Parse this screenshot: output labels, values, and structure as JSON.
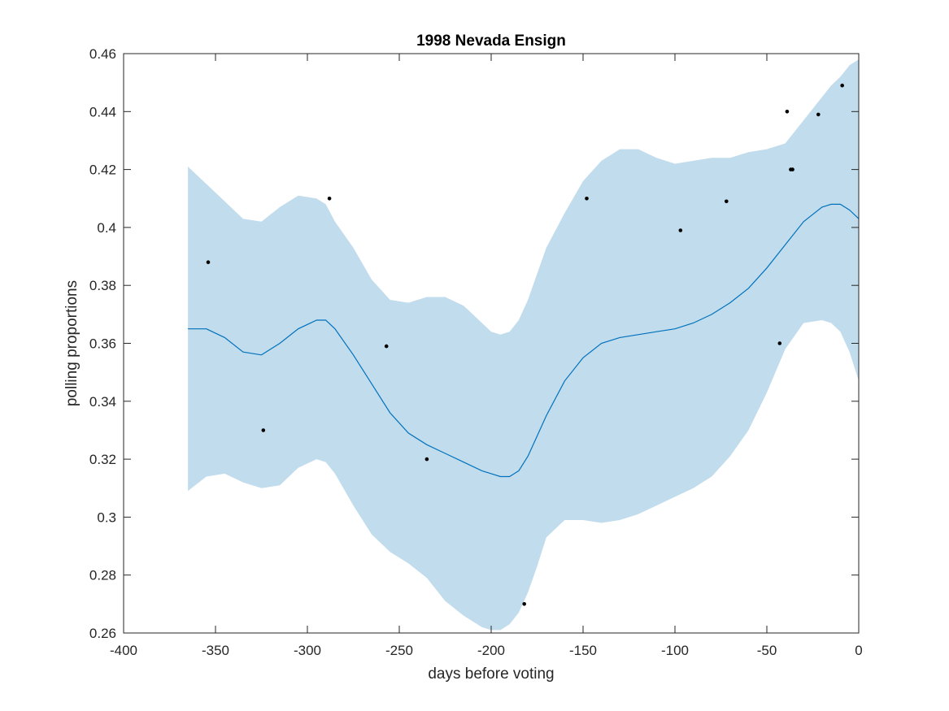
{
  "chart_data": {
    "type": "line",
    "title": "1998 Nevada Ensign",
    "xlabel": "days before voting",
    "ylabel": "polling proportions",
    "xlim": [
      -400,
      0
    ],
    "ylim": [
      0.26,
      0.46
    ],
    "xticks": [
      -400,
      -350,
      -300,
      -250,
      -200,
      -150,
      -100,
      -50,
      0
    ],
    "xtick_labels": [
      "-400",
      "-350",
      "-300",
      "-250",
      "-200",
      "-150",
      "-100",
      "-50",
      "0"
    ],
    "yticks": [
      0.26,
      0.28,
      0.3,
      0.32,
      0.34,
      0.36,
      0.38,
      0.4,
      0.42,
      0.44,
      0.46
    ],
    "ytick_labels": [
      "0.26",
      "0.28",
      "0.3",
      "0.32",
      "0.34",
      "0.36",
      "0.38",
      "0.4",
      "0.42",
      "0.44",
      "0.46"
    ],
    "grid": false,
    "colors": {
      "mean": "#0072bd",
      "band": "#c1dcec",
      "points": "#000000",
      "axes": "#262626"
    },
    "series": [
      {
        "kind": "mean",
        "x": [
          -365,
          -355,
          -345,
          -335,
          -325,
          -315,
          -305,
          -295,
          -290,
          -285,
          -275,
          -265,
          -255,
          -245,
          -235,
          -225,
          -215,
          -205,
          -200,
          -195,
          -190,
          -185,
          -180,
          -175,
          -170,
          -160,
          -150,
          -140,
          -130,
          -120,
          -110,
          -100,
          -90,
          -80,
          -70,
          -60,
          -50,
          -40,
          -30,
          -20,
          -15,
          -10,
          -5,
          0
        ],
        "y": [
          0.365,
          0.365,
          0.362,
          0.357,
          0.356,
          0.36,
          0.365,
          0.368,
          0.368,
          0.365,
          0.356,
          0.346,
          0.336,
          0.329,
          0.325,
          0.322,
          0.319,
          0.316,
          0.315,
          0.314,
          0.314,
          0.316,
          0.321,
          0.328,
          0.335,
          0.347,
          0.355,
          0.36,
          0.362,
          0.363,
          0.364,
          0.365,
          0.367,
          0.37,
          0.374,
          0.379,
          0.386,
          0.394,
          0.402,
          0.407,
          0.408,
          0.408,
          0.406,
          0.403
        ]
      },
      {
        "kind": "band",
        "x": [
          -365,
          -355,
          -345,
          -335,
          -325,
          -315,
          -305,
          -295,
          -290,
          -285,
          -275,
          -265,
          -255,
          -245,
          -235,
          -225,
          -215,
          -205,
          -200,
          -195,
          -190,
          -185,
          -180,
          -175,
          -170,
          -160,
          -150,
          -140,
          -130,
          -120,
          -110,
          -100,
          -90,
          -80,
          -70,
          -60,
          -50,
          -40,
          -30,
          -20,
          -15,
          -10,
          -5,
          0
        ],
        "upper": [
          0.421,
          0.415,
          0.409,
          0.403,
          0.402,
          0.407,
          0.411,
          0.41,
          0.408,
          0.402,
          0.393,
          0.382,
          0.375,
          0.374,
          0.376,
          0.376,
          0.373,
          0.367,
          0.364,
          0.363,
          0.364,
          0.368,
          0.375,
          0.384,
          0.393,
          0.405,
          0.416,
          0.423,
          0.427,
          0.427,
          0.424,
          0.422,
          0.423,
          0.424,
          0.424,
          0.426,
          0.427,
          0.429,
          0.437,
          0.445,
          0.449,
          0.452,
          0.456,
          0.458
        ],
        "lower": [
          0.309,
          0.314,
          0.315,
          0.312,
          0.31,
          0.311,
          0.317,
          0.32,
          0.319,
          0.315,
          0.304,
          0.294,
          0.288,
          0.284,
          0.279,
          0.271,
          0.266,
          0.262,
          0.261,
          0.261,
          0.263,
          0.267,
          0.274,
          0.283,
          0.293,
          0.299,
          0.299,
          0.298,
          0.299,
          0.301,
          0.304,
          0.307,
          0.31,
          0.314,
          0.321,
          0.33,
          0.343,
          0.358,
          0.367,
          0.368,
          0.367,
          0.364,
          0.357,
          0.347
        ]
      },
      {
        "kind": "points",
        "x": [
          -354,
          -324,
          -288,
          -257,
          -235,
          -182,
          -148,
          -97,
          -72,
          -43,
          -39,
          -37,
          -36,
          -22,
          -9
        ],
        "y": [
          0.388,
          0.33,
          0.41,
          0.359,
          0.32,
          0.27,
          0.41,
          0.399,
          0.409,
          0.36,
          0.44,
          0.42,
          0.42,
          0.439,
          0.449
        ]
      }
    ]
  }
}
